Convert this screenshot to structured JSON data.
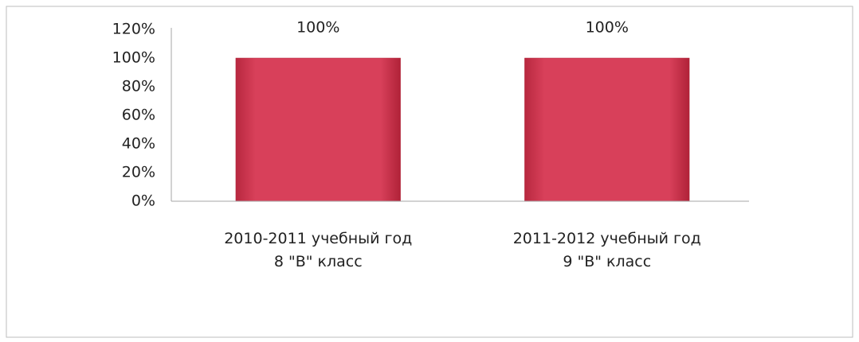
{
  "chart_data": {
    "type": "bar",
    "categories": [
      "2010-2011 учебный год\n8 \"В\" класс",
      "2011-2012 учебный год\n9 \"В\" класс"
    ],
    "values": [
      100,
      100
    ],
    "value_labels": [
      "100%",
      "100%"
    ],
    "color": "#d63a55",
    "ylim": [
      0,
      120
    ],
    "yticks": [
      {
        "value": 0,
        "label": "0%"
      },
      {
        "value": 20,
        "label": "20%"
      },
      {
        "value": 40,
        "label": "40%"
      },
      {
        "value": 60,
        "label": "60%"
      },
      {
        "value": 80,
        "label": "80%"
      },
      {
        "value": 100,
        "label": "100%"
      },
      {
        "value": 120,
        "label": "120%"
      }
    ],
    "grid": false
  }
}
